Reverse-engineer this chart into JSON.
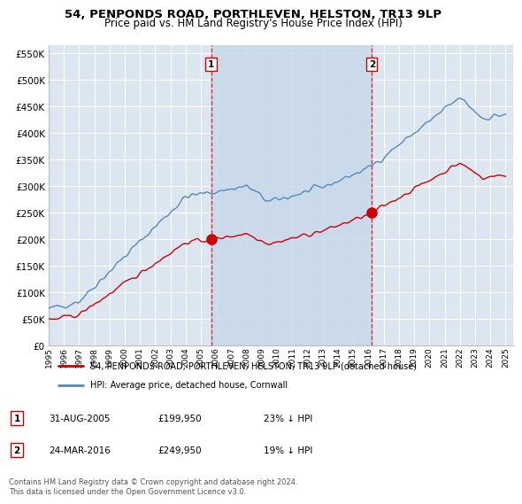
{
  "title": "54, PENPONDS ROAD, PORTHLEVEN, HELSTON, TR13 9LP",
  "subtitle": "Price paid vs. HM Land Registry's House Price Index (HPI)",
  "ylabel_ticks": [
    "£0",
    "£50K",
    "£100K",
    "£150K",
    "£200K",
    "£250K",
    "£300K",
    "£350K",
    "£400K",
    "£450K",
    "£500K",
    "£550K"
  ],
  "ytick_values": [
    0,
    50000,
    100000,
    150000,
    200000,
    250000,
    300000,
    350000,
    400000,
    450000,
    500000,
    550000
  ],
  "ylim": [
    0,
    565000
  ],
  "xlim_start": 1995.0,
  "xlim_end": 2025.5,
  "red_line_color": "#cc0000",
  "blue_line_color": "#5588bb",
  "fill_color": "#c8d8ea",
  "background_color": "#dce6f0",
  "plot_bg_color": "#dce6f0",
  "outer_bg_color": "#ffffff",
  "grid_color": "#ffffff",
  "transaction1_x": 2005.667,
  "transaction1_y": 199950,
  "transaction1_label": "1",
  "transaction2_x": 2016.22,
  "transaction2_y": 249950,
  "transaction2_label": "2",
  "legend_line1": "54, PENPONDS ROAD, PORTHLEVEN, HELSTON, TR13 9LP (detached house)",
  "legend_line2": "HPI: Average price, detached house, Cornwall",
  "table_row1_num": "1",
  "table_row1_date": "31-AUG-2005",
  "table_row1_price": "£199,950",
  "table_row1_hpi": "23% ↓ HPI",
  "table_row2_num": "2",
  "table_row2_date": "24-MAR-2016",
  "table_row2_price": "£249,950",
  "table_row2_hpi": "19% ↓ HPI",
  "footnote": "Contains HM Land Registry data © Crown copyright and database right 2024.\nThis data is licensed under the Open Government Licence v3.0.",
  "title_fontsize": 9.5,
  "subtitle_fontsize": 8.5
}
